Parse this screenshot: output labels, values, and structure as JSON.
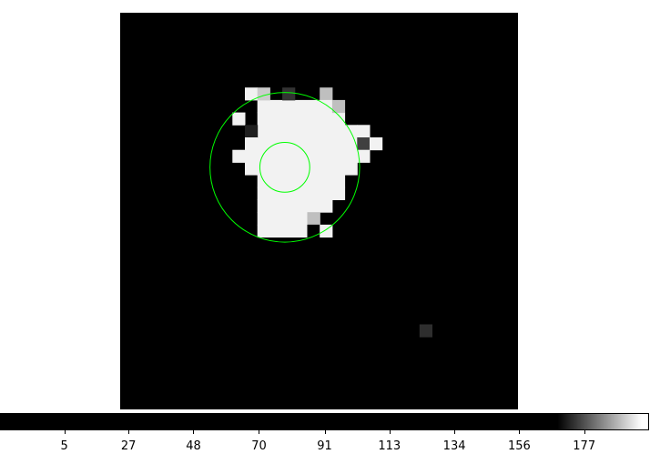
{
  "image": {
    "pixel_size": 13.7,
    "pixels": [
      {
        "col": 10,
        "row": 6,
        "v": 0.95
      },
      {
        "col": 11,
        "row": 6,
        "v": 0.8
      },
      {
        "col": 13,
        "row": 6,
        "v": 0.2
      },
      {
        "col": 16,
        "row": 6,
        "v": 0.75
      },
      {
        "col": 16,
        "row": 7,
        "v": 0.95
      },
      {
        "col": 17,
        "row": 7,
        "v": 0.75
      },
      {
        "col": 9,
        "row": 8,
        "v": 0.95
      },
      {
        "col": 19,
        "row": 9,
        "v": 0.95
      },
      {
        "col": 10,
        "row": 9,
        "v": 0.12
      },
      {
        "col": 19,
        "row": 10,
        "v": 0.25
      },
      {
        "col": 20,
        "row": 10,
        "v": 0.95
      },
      {
        "col": 10,
        "row": 10,
        "v": 0.95
      },
      {
        "col": 9,
        "row": 11,
        "v": 0.95
      },
      {
        "col": 10,
        "row": 11,
        "v": 0.95
      },
      {
        "col": 19,
        "row": 11,
        "v": 0.95
      },
      {
        "col": 10,
        "row": 12,
        "v": 0.95
      },
      {
        "col": 11,
        "row": 12,
        "v": 0.95
      },
      {
        "col": 11,
        "row": 13,
        "v": 0.95
      },
      {
        "col": 11,
        "row": 14,
        "v": 0.95
      },
      {
        "col": 15,
        "row": 16,
        "v": 0.75
      },
      {
        "col": 15,
        "row": 17,
        "v": 0.0
      },
      {
        "col": 16,
        "row": 17,
        "v": 0.95
      },
      {
        "col": 24,
        "row": 25,
        "v": 0.18
      }
    ],
    "blob_rows": [
      {
        "row": 7,
        "from": 11,
        "to": 16
      },
      {
        "row": 8,
        "from": 11,
        "to": 17
      },
      {
        "row": 9,
        "from": 11,
        "to": 18
      },
      {
        "row": 10,
        "from": 11,
        "to": 18
      },
      {
        "row": 11,
        "from": 11,
        "to": 18
      },
      {
        "row": 12,
        "from": 12,
        "to": 18
      },
      {
        "row": 13,
        "from": 12,
        "to": 17
      },
      {
        "row": 14,
        "from": 12,
        "to": 17
      },
      {
        "row": 15,
        "from": 11,
        "to": 16
      },
      {
        "row": 16,
        "from": 11,
        "to": 15
      },
      {
        "row": 17,
        "from": 11,
        "to": 14
      }
    ],
    "regions": [
      {
        "name": "outer-circle-region",
        "cx": 13.2,
        "cy": 12.4,
        "r": 6.0,
        "color": "#00ff00"
      },
      {
        "name": "inner-circle-region",
        "cx": 13.2,
        "cy": 12.4,
        "r": 2.0,
        "color": "#00ff00"
      }
    ]
  },
  "colorbar": {
    "ticks": [
      {
        "label": "5",
        "pos": 0.099
      },
      {
        "label": "27",
        "pos": 0.198
      },
      {
        "label": "48",
        "pos": 0.298
      },
      {
        "label": "70",
        "pos": 0.399
      },
      {
        "label": "91",
        "pos": 0.5
      },
      {
        "label": "113",
        "pos": 0.6
      },
      {
        "label": "134",
        "pos": 0.7
      },
      {
        "label": "156",
        "pos": 0.8
      },
      {
        "label": "177",
        "pos": 0.9
      }
    ],
    "gradient_start": 0.86,
    "gradient_end": 0.99
  }
}
